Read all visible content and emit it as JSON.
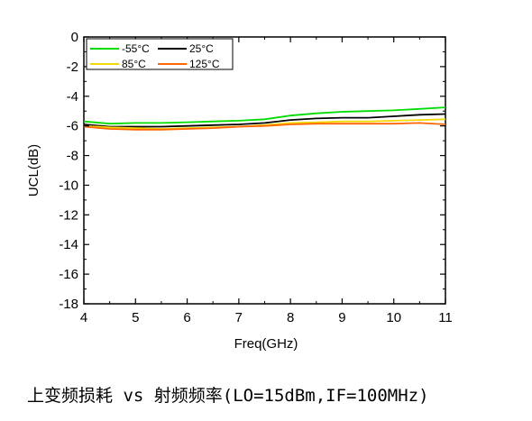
{
  "chart_data": {
    "type": "line",
    "xlabel": "Freq(GHz)",
    "ylabel": "UCL(dB)",
    "xlim": [
      4,
      11
    ],
    "ylim": [
      -18,
      0
    ],
    "xticks": [
      "4",
      "5",
      "6",
      "7",
      "8",
      "9",
      "10",
      "11"
    ],
    "yticks": [
      "0",
      "-2",
      "-4",
      "-6",
      "-8",
      "-10",
      "-12",
      "-14",
      "-16",
      "-18"
    ],
    "grid": false,
    "legend_position": "top-left",
    "series": [
      {
        "name": "-55°C",
        "color": "#00dd00",
        "x": [
          4,
          4.5,
          5,
          5.5,
          6,
          6.5,
          7,
          7.5,
          8,
          8.5,
          9,
          9.5,
          10,
          10.5,
          11
        ],
        "y": [
          -5.7,
          -5.85,
          -5.8,
          -5.8,
          -5.75,
          -5.7,
          -5.65,
          -5.55,
          -5.3,
          -5.15,
          -5.05,
          -5.0,
          -4.95,
          -4.85,
          -4.75
        ]
      },
      {
        "name": "25°C",
        "color": "#000000",
        "x": [
          4,
          4.5,
          5,
          5.5,
          6,
          6.5,
          7,
          7.5,
          8,
          8.5,
          9,
          9.5,
          10,
          10.5,
          11
        ],
        "y": [
          -5.9,
          -6.05,
          -6.05,
          -6.05,
          -6.0,
          -5.95,
          -5.9,
          -5.8,
          -5.6,
          -5.5,
          -5.45,
          -5.45,
          -5.35,
          -5.25,
          -5.2
        ]
      },
      {
        "name": "85°C",
        "color": "#f5d800",
        "x": [
          4,
          4.5,
          5,
          5.5,
          6,
          6.5,
          7,
          7.5,
          8,
          8.5,
          9,
          9.5,
          10,
          10.5,
          11
        ],
        "y": [
          -6.0,
          -6.1,
          -6.15,
          -6.2,
          -6.15,
          -6.1,
          -6.05,
          -5.95,
          -5.8,
          -5.75,
          -5.7,
          -5.7,
          -5.65,
          -5.6,
          -5.55
        ]
      },
      {
        "name": "125°C",
        "color": "#ff6600",
        "x": [
          4,
          4.5,
          5,
          5.5,
          6,
          6.5,
          7,
          7.5,
          8,
          8.5,
          9,
          9.5,
          10,
          10.5,
          11
        ],
        "y": [
          -6.05,
          -6.2,
          -6.25,
          -6.25,
          -6.2,
          -6.15,
          -6.05,
          -6.0,
          -5.9,
          -5.85,
          -5.85,
          -5.85,
          -5.85,
          -5.8,
          -5.9
        ]
      }
    ]
  },
  "caption": "上变频损耗 vs 射频频率(LO=15dBm,IF=100MHz)"
}
